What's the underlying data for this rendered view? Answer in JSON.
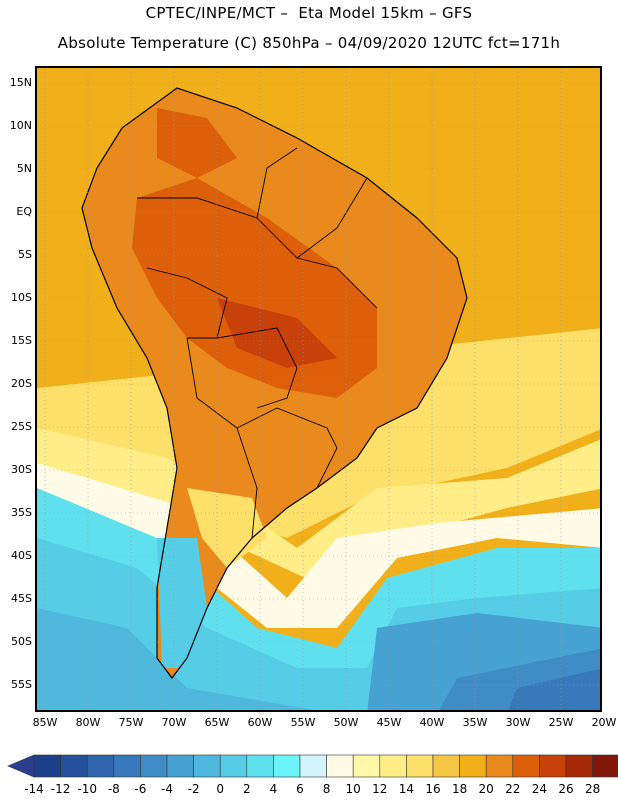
{
  "header": {
    "line1": "CPTEC/INPE/MCT –  Eta Model 15km – GFS",
    "line2": "Absolute Temperature (C) 850hPa – 04/09/2020 12UTC fct=171h"
  },
  "lat_labels": [
    "15N",
    "10N",
    "5N",
    "EQ",
    "5S",
    "10S",
    "15S",
    "20S",
    "25S",
    "30S",
    "35S",
    "40S",
    "45S",
    "50S",
    "55S"
  ],
  "lon_labels": [
    "85W",
    "80W",
    "75W",
    "70W",
    "65W",
    "60W",
    "55W",
    "50W",
    "45W",
    "40W",
    "35W",
    "30W",
    "25W",
    "20W"
  ],
  "colorbar": {
    "labels": [
      "-14",
      "-12",
      "-10",
      "-8",
      "-6",
      "-4",
      "-2",
      "0",
      "2",
      "4",
      "6",
      "8",
      "10",
      "12",
      "14",
      "16",
      "18",
      "20",
      "22",
      "24",
      "26",
      "28"
    ],
    "colors": [
      "#1c3f8c",
      "#25519c",
      "#2e65ad",
      "#3779ba",
      "#3f8cc6",
      "#46a2d2",
      "#4fb8dd",
      "#56cde6",
      "#5fe0ee",
      "#6bf4f7",
      "#d2f5fb",
      "#fffbe6",
      "#fff8a8",
      "#ffee88",
      "#fde06a",
      "#f6c745",
      "#f1b01a",
      "#ea8a1c",
      "#dd5f0a",
      "#c8400a",
      "#a72a08",
      "#83180a"
    ],
    "under_color": "#2a3d8f",
    "over_color": "#7a0625"
  },
  "map": {
    "ocean_north_color": "#f1b01a",
    "land_hot_color": "#dd5f0a",
    "land_warm_color": "#ea8a1c",
    "cold_ocean_color": "#4fb8dd",
    "very_cold_color": "#3f8cc6"
  }
}
